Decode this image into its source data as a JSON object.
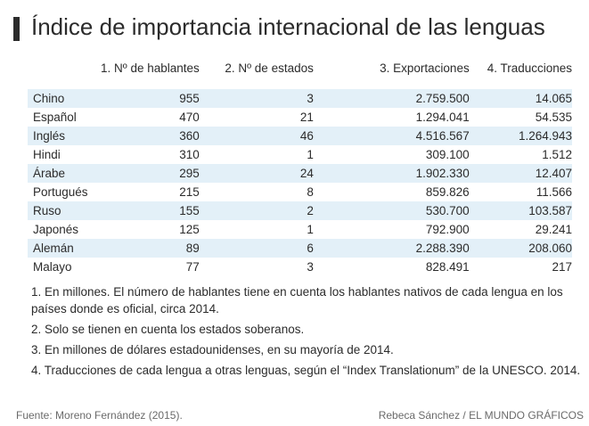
{
  "title": "Índice de importancia internacional de las lenguas",
  "table": {
    "headers": [
      "1. Nº de hablantes",
      "2. Nº de estados",
      "3. Exportaciones",
      "4. Traducciones"
    ],
    "rows": [
      {
        "lang": "Chino",
        "hablantes": "955",
        "estados": "3",
        "exportaciones": "2.759.500",
        "traducciones": "14.065"
      },
      {
        "lang": "Español",
        "hablantes": "470",
        "estados": "21",
        "exportaciones": "1.294.041",
        "traducciones": "54.535"
      },
      {
        "lang": "Inglés",
        "hablantes": "360",
        "estados": "46",
        "exportaciones": "4.516.567",
        "traducciones": "1.264.943"
      },
      {
        "lang": "Hindi",
        "hablantes": "310",
        "estados": "1",
        "exportaciones": "309.100",
        "traducciones": "1.512"
      },
      {
        "lang": "Árabe",
        "hablantes": "295",
        "estados": "24",
        "exportaciones": "1.902.330",
        "traducciones": "12.407"
      },
      {
        "lang": "Portugués",
        "hablantes": "215",
        "estados": "8",
        "exportaciones": "859.826",
        "traducciones": "11.566"
      },
      {
        "lang": "Ruso",
        "hablantes": "155",
        "estados": "2",
        "exportaciones": "530.700",
        "traducciones": "103.587"
      },
      {
        "lang": "Japonés",
        "hablantes": "125",
        "estados": "1",
        "exportaciones": "792.900",
        "traducciones": "29.241"
      },
      {
        "lang": "Alemán",
        "hablantes": "89",
        "estados": "6",
        "exportaciones": "2.288.390",
        "traducciones": "208.060"
      },
      {
        "lang": "Malayo",
        "hablantes": "77",
        "estados": "3",
        "exportaciones": "828.491",
        "traducciones": "217"
      }
    ]
  },
  "notes": [
    "1. En millones. El número de hablantes tiene en cuenta los hablantes nativos de cada lengua en los países donde es oficial, circa 2014.",
    "2. Solo se tienen en cuenta los estados soberanos.",
    "3. En millones de dólares estadounidenses, en su mayoría de 2014.",
    "4. Traducciones de cada lengua a otras lenguas, según el “Index Translationum” de la UNESCO. 2014."
  ],
  "source": "Fuente: Moreno Fernández (2015).",
  "credit": "Rebeca Sánchez / EL MUNDO GRÁFICOS",
  "colors": {
    "row_shade": "#e3f0f8",
    "title_bar": "#2b2b2b",
    "text": "#2b2b2b",
    "footer_text": "#6a6a6a"
  }
}
